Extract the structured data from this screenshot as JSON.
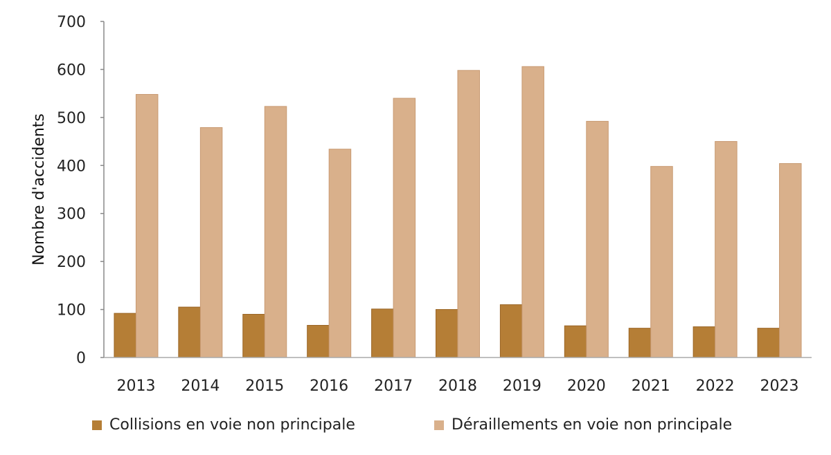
{
  "chart_data": {
    "type": "bar",
    "title": "",
    "xlabel": "",
    "ylabel": "Nombre d'accidents",
    "ylim": [
      0,
      700
    ],
    "yticks": [
      0,
      100,
      200,
      300,
      400,
      500,
      600,
      700
    ],
    "grid": false,
    "legend_position": "bottom",
    "categories": [
      "2013",
      "2014",
      "2015",
      "2016",
      "2017",
      "2018",
      "2019",
      "2020",
      "2021",
      "2022",
      "2023"
    ],
    "series": [
      {
        "name": "Collisions en voie non principale",
        "color": "#b57e36",
        "values": [
          92,
          105,
          90,
          67,
          101,
          100,
          110,
          66,
          61,
          64,
          61
        ]
      },
      {
        "name": "Déraillements en voie non principale",
        "color": "#d9b08b",
        "values": [
          548,
          479,
          523,
          434,
          540,
          598,
          606,
          492,
          398,
          450,
          404
        ]
      }
    ]
  }
}
